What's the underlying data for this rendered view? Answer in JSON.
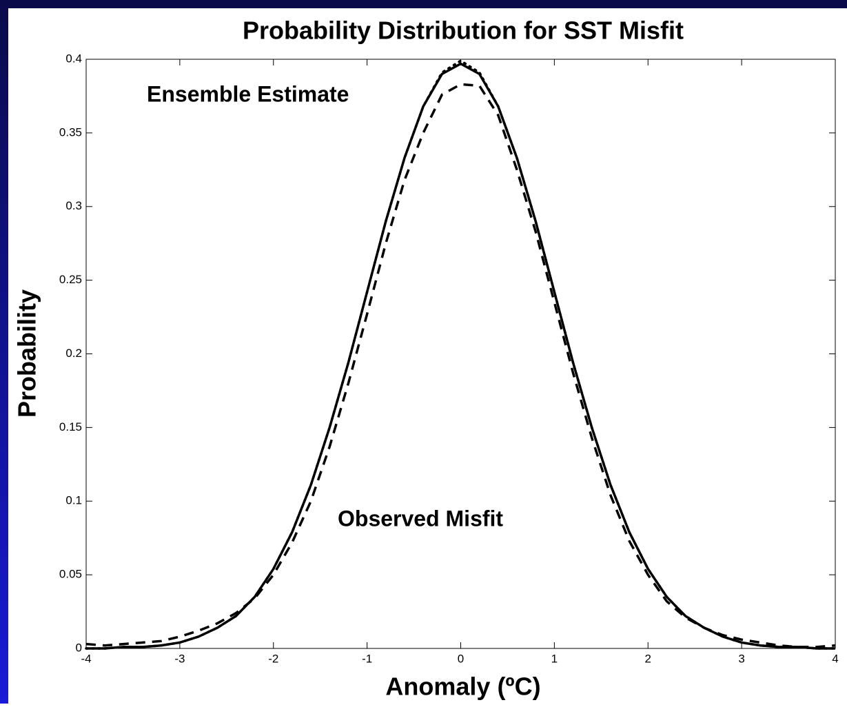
{
  "chart_data": {
    "type": "line",
    "title": "Probability Distribution for SST Misfit",
    "xlabel": "Anomaly (ºC)",
    "ylabel": "Probability",
    "annotations": [
      "Ensemble Estimate",
      "Observed Misfit"
    ],
    "x": [
      -4,
      -3.8,
      -3.6,
      -3.4,
      -3.2,
      -3,
      -2.8,
      -2.6,
      -2.4,
      -2.2,
      -2,
      -1.8,
      -1.6,
      -1.4,
      -1.2,
      -1,
      -0.8,
      -0.6,
      -0.4,
      -0.2,
      0,
      0.2,
      0.4,
      0.6,
      0.8,
      1,
      1.2,
      1.4,
      1.6,
      1.8,
      2,
      2.2,
      2.4,
      2.6,
      2.8,
      3,
      3.2,
      3.4,
      3.6,
      3.8,
      4
    ],
    "series": [
      {
        "color": "#000000",
        "dash": "solid",
        "values": [
          0,
          0,
          0.001,
          0.001,
          0.002,
          0.004,
          0.008,
          0.014,
          0.022,
          0.035,
          0.054,
          0.079,
          0.111,
          0.15,
          0.194,
          0.242,
          0.29,
          0.333,
          0.368,
          0.39,
          0.397,
          0.39,
          0.368,
          0.333,
          0.29,
          0.242,
          0.194,
          0.15,
          0.111,
          0.079,
          0.054,
          0.035,
          0.022,
          0.014,
          0.008,
          0.004,
          0.002,
          0.001,
          0.001,
          0,
          0
        ]
      },
      {
        "color": "#000000",
        "dash": "dotted",
        "values": [
          0,
          0,
          0.001,
          0.001,
          0.002,
          0.004,
          0.008,
          0.014,
          0.022,
          0.035,
          0.054,
          0.079,
          0.111,
          0.15,
          0.194,
          0.242,
          0.29,
          0.333,
          0.368,
          0.391,
          0.399,
          0.391,
          0.368,
          0.333,
          0.29,
          0.242,
          0.194,
          0.15,
          0.111,
          0.079,
          0.054,
          0.035,
          0.022,
          0.014,
          0.008,
          0.004,
          0.002,
          0.001,
          0.001,
          0,
          0
        ]
      },
      {
        "color": "#000000",
        "dash": "dashed",
        "values": [
          0.003,
          0.002,
          0.003,
          0.004,
          0.005,
          0.008,
          0.012,
          0.017,
          0.024,
          0.034,
          0.05,
          0.072,
          0.1,
          0.137,
          0.18,
          0.227,
          0.275,
          0.318,
          0.35,
          0.376,
          0.383,
          0.382,
          0.362,
          0.325,
          0.283,
          0.235,
          0.187,
          0.143,
          0.104,
          0.073,
          0.05,
          0.032,
          0.021,
          0.014,
          0.009,
          0.006,
          0.004,
          0.002,
          0.001,
          0.001,
          0.002
        ]
      }
    ],
    "xlim": [
      -4,
      4
    ],
    "xticks": [
      -4,
      -3,
      -2,
      -1,
      0,
      1,
      2,
      3,
      4
    ],
    "ylim": [
      0,
      0.4
    ],
    "yticks": [
      0,
      0.05,
      0.1,
      0.15,
      0.2,
      0.25,
      0.3,
      0.35,
      0.4
    ],
    "grid": false
  }
}
